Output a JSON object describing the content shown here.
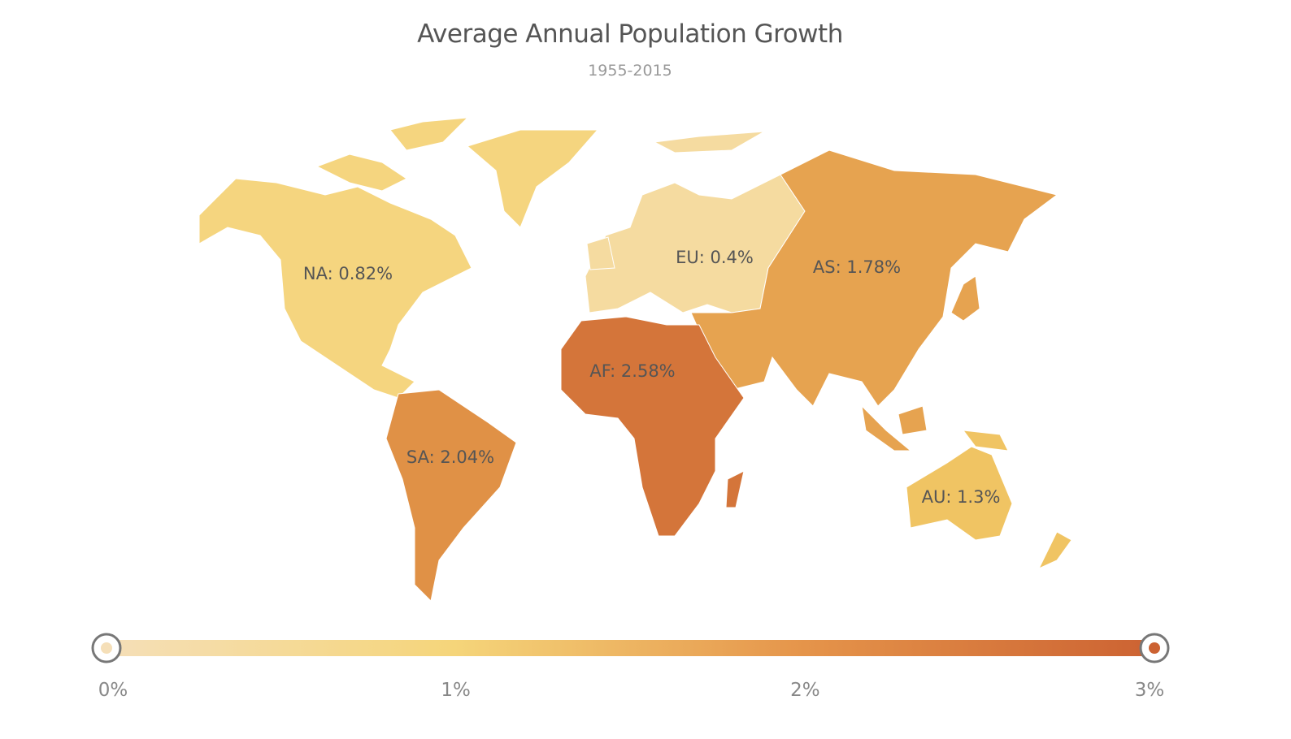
{
  "chart_data": {
    "type": "choropleth",
    "title": "Average Annual Population Growth",
    "subtitle": "1955-2015",
    "regions": [
      {
        "code": "NA",
        "label": "NA: 0.82%",
        "value": 0.82,
        "color": "#f5d57f"
      },
      {
        "code": "EU",
        "label": "EU: 0.4%",
        "value": 0.4,
        "color": "#f5dba0"
      },
      {
        "code": "AS",
        "label": "AS: 1.78%",
        "value": 1.78,
        "color": "#e6a350"
      },
      {
        "code": "AF",
        "label": "AF: 2.58%",
        "value": 2.58,
        "color": "#d4753a"
      },
      {
        "code": "SA",
        "label": "SA: 2.04%",
        "value": 2.04,
        "color": "#e09146"
      },
      {
        "code": "AU",
        "label": "AU: 1.3%",
        "value": 1.3,
        "color": "#f0c463"
      }
    ],
    "color_scale": {
      "range": [
        0,
        3
      ],
      "ticks": [
        "0%",
        "1%",
        "2%",
        "3%"
      ],
      "stops": [
        "#f5dfb8",
        "#f5d57a",
        "#e5944a",
        "#cc6232"
      ],
      "slider_min": 0,
      "slider_max": 3
    }
  }
}
